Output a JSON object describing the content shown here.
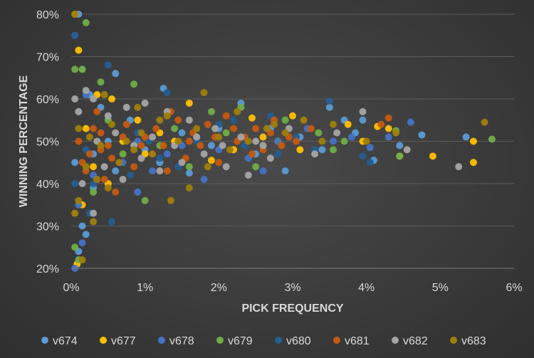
{
  "chart_data": {
    "type": "scatter",
    "title": "",
    "xlabel": "PICK FREQUENCY",
    "ylabel": "WINNING PERCENTAGE",
    "xlim": [
      0,
      6
    ],
    "ylim": [
      20,
      80
    ],
    "x_ticks": [
      "0%",
      "1%",
      "2%",
      "3%",
      "4%",
      "5%",
      "6%"
    ],
    "y_ticks": [
      "20%",
      "30%",
      "40%",
      "50%",
      "60%",
      "70%",
      "80%"
    ],
    "grid": "horizontal",
    "legend_position": "bottom",
    "series": [
      {
        "name": "v674",
        "color": "#5b9bd5",
        "points": [
          [
            0.1,
            80
          ],
          [
            0.15,
            67
          ],
          [
            0.25,
            61
          ],
          [
            0.6,
            66
          ],
          [
            1.25,
            62.5
          ],
          [
            0.4,
            58
          ],
          [
            0.8,
            55
          ],
          [
            1.5,
            52
          ],
          [
            1.9,
            49
          ],
          [
            2.3,
            59
          ],
          [
            2.7,
            53
          ],
          [
            3.1,
            51
          ],
          [
            3.5,
            58
          ],
          [
            3.7,
            55
          ],
          [
            3.85,
            52
          ],
          [
            3.95,
            55
          ],
          [
            4.45,
            49
          ],
          [
            4.75,
            51.5
          ],
          [
            5.35,
            51
          ],
          [
            0.05,
            45
          ],
          [
            0.3,
            47
          ],
          [
            0.6,
            43
          ],
          [
            1.2,
            45
          ],
          [
            2.5,
            47
          ],
          [
            2.9,
            43
          ],
          [
            3.4,
            48
          ],
          [
            4.1,
            45.5
          ],
          [
            0.15,
            30
          ],
          [
            0.2,
            28
          ],
          [
            0.3,
            39
          ],
          [
            1.6,
            42.5
          ],
          [
            0.1,
            24
          ],
          [
            0.5,
            50
          ],
          [
            1.0,
            48
          ],
          [
            2.0,
            53
          ]
        ]
      },
      {
        "name": "v677",
        "color": "#ffc000",
        "points": [
          [
            0.05,
            80
          ],
          [
            0.1,
            71.5
          ],
          [
            0.35,
            61
          ],
          [
            0.55,
            60
          ],
          [
            1.6,
            59
          ],
          [
            2.45,
            55.5
          ],
          [
            3.0,
            56
          ],
          [
            3.1,
            48
          ],
          [
            3.75,
            54
          ],
          [
            3.95,
            50
          ],
          [
            4.15,
            53.5
          ],
          [
            4.3,
            53
          ],
          [
            4.45,
            46.5
          ],
          [
            4.9,
            46.5
          ],
          [
            5.45,
            50
          ],
          [
            5.45,
            45
          ],
          [
            0.2,
            53
          ],
          [
            0.7,
            50
          ],
          [
            1.0,
            47
          ],
          [
            1.4,
            50
          ],
          [
            1.9,
            45.5
          ],
          [
            2.2,
            48
          ],
          [
            2.6,
            51
          ],
          [
            0.08,
            21
          ],
          [
            0.15,
            35
          ],
          [
            0.3,
            44
          ],
          [
            0.5,
            40
          ],
          [
            0.9,
            55
          ],
          [
            1.2,
            52
          ],
          [
            2.8,
            50
          ]
        ]
      },
      {
        "name": "v678",
        "color": "#4472c4",
        "points": [
          [
            0.05,
            75
          ],
          [
            0.2,
            61
          ],
          [
            0.5,
            55
          ],
          [
            0.9,
            50
          ],
          [
            1.3,
            47
          ],
          [
            1.7,
            51
          ],
          [
            2.0,
            48
          ],
          [
            2.4,
            46
          ],
          [
            2.8,
            50
          ],
          [
            3.2,
            53
          ],
          [
            3.55,
            50
          ],
          [
            3.8,
            51
          ],
          [
            4.05,
            48.5
          ],
          [
            4.3,
            51
          ],
          [
            4.6,
            54.5
          ],
          [
            0.1,
            35
          ],
          [
            0.15,
            26
          ],
          [
            0.05,
            20
          ],
          [
            0.3,
            42
          ],
          [
            0.7,
            45
          ],
          [
            1.1,
            43
          ],
          [
            1.5,
            49
          ],
          [
            2.6,
            43
          ],
          [
            0.9,
            38
          ],
          [
            1.8,
            41
          ]
        ]
      },
      {
        "name": "v679",
        "color": "#70ad47",
        "points": [
          [
            0.2,
            78
          ],
          [
            0.15,
            67
          ],
          [
            0.05,
            67
          ],
          [
            0.85,
            63.5
          ],
          [
            0.4,
            64
          ],
          [
            1.9,
            57
          ],
          [
            2.3,
            58
          ],
          [
            2.9,
            55
          ],
          [
            3.35,
            52
          ],
          [
            3.7,
            50
          ],
          [
            4.4,
            52.5
          ],
          [
            4.45,
            46.5
          ],
          [
            5.7,
            50.5
          ],
          [
            2.5,
            44
          ],
          [
            3.55,
            48
          ],
          [
            0.3,
            38
          ],
          [
            0.5,
            55
          ],
          [
            1.0,
            36
          ],
          [
            1.2,
            49
          ],
          [
            1.6,
            44
          ],
          [
            2.1,
            52
          ],
          [
            0.05,
            25
          ],
          [
            0.1,
            22
          ],
          [
            0.7,
            47
          ],
          [
            1.4,
            53
          ]
        ]
      },
      {
        "name": "v680",
        "color": "#255e91",
        "points": [
          [
            0.05,
            75
          ],
          [
            0.5,
            68
          ],
          [
            1.3,
            61.5
          ],
          [
            2.2,
            55
          ],
          [
            2.7,
            56
          ],
          [
            3.5,
            59.5
          ],
          [
            3.05,
            51
          ],
          [
            3.3,
            48
          ],
          [
            3.95,
            46.5
          ],
          [
            4.05,
            45
          ],
          [
            0.55,
            31
          ],
          [
            0.3,
            40
          ],
          [
            0.8,
            42
          ],
          [
            1.2,
            46
          ],
          [
            1.7,
            50
          ],
          [
            2.0,
            54
          ],
          [
            2.35,
            49
          ],
          [
            0.1,
            57
          ],
          [
            0.2,
            48
          ],
          [
            0.9,
            52
          ],
          [
            1.45,
            44
          ],
          [
            2.8,
            47
          ],
          [
            0.05,
            40
          ],
          [
            0.25,
            33
          ],
          [
            1.05,
            50
          ]
        ]
      },
      {
        "name": "v681",
        "color": "#c55a11",
        "points": [
          [
            0.3,
            53
          ],
          [
            0.4,
            48
          ],
          [
            0.55,
            46
          ],
          [
            0.7,
            51
          ],
          [
            0.95,
            49
          ],
          [
            1.15,
            53
          ],
          [
            1.35,
            57
          ],
          [
            1.6,
            50
          ],
          [
            1.85,
            54
          ],
          [
            2.1,
            56
          ],
          [
            2.35,
            51
          ],
          [
            2.6,
            48
          ],
          [
            2.75,
            55
          ],
          [
            3.05,
            50
          ],
          [
            3.25,
            53
          ],
          [
            4.2,
            54
          ],
          [
            4.3,
            55.5
          ],
          [
            0.2,
            43
          ],
          [
            0.45,
            41
          ],
          [
            0.6,
            38
          ],
          [
            0.85,
            44
          ],
          [
            1.1,
            47
          ],
          [
            1.3,
            43
          ],
          [
            1.55,
            46
          ],
          [
            1.75,
            49
          ],
          [
            2.0,
            45
          ],
          [
            2.25,
            50
          ],
          [
            2.5,
            53
          ],
          [
            2.85,
            49
          ],
          [
            0.05,
            33
          ],
          [
            0.15,
            45
          ],
          [
            0.35,
            57
          ],
          [
            0.5,
            49
          ],
          [
            0.75,
            54
          ],
          [
            1.0,
            51
          ],
          [
            1.25,
            49
          ],
          [
            1.45,
            55
          ],
          [
            1.65,
            52
          ],
          [
            1.95,
            51
          ],
          [
            2.2,
            53
          ],
          [
            2.45,
            47
          ],
          [
            2.7,
            52
          ],
          [
            2.95,
            51
          ],
          [
            3.15,
            55
          ],
          [
            0.1,
            50
          ],
          [
            0.25,
            47
          ],
          [
            0.4,
            52
          ]
        ]
      },
      {
        "name": "v682",
        "color": "#a5a5a5",
        "points": [
          [
            0.2,
            62
          ],
          [
            0.3,
            60
          ],
          [
            0.5,
            56
          ],
          [
            0.75,
            58
          ],
          [
            1.0,
            59
          ],
          [
            1.3,
            57
          ],
          [
            1.6,
            55
          ],
          [
            1.95,
            53
          ],
          [
            2.3,
            51
          ],
          [
            2.6,
            49
          ],
          [
            2.95,
            53
          ],
          [
            3.3,
            47
          ],
          [
            3.95,
            57
          ],
          [
            4.55,
            48
          ],
          [
            5.25,
            44
          ],
          [
            0.15,
            40
          ],
          [
            0.3,
            33
          ],
          [
            0.45,
            44
          ],
          [
            0.7,
            41
          ],
          [
            0.95,
            46
          ],
          [
            1.2,
            43
          ],
          [
            1.5,
            45
          ],
          [
            1.8,
            47
          ],
          [
            2.1,
            44
          ],
          [
            2.4,
            42
          ],
          [
            2.7,
            46
          ],
          [
            0.1,
            57
          ],
          [
            0.35,
            50
          ],
          [
            0.6,
            52
          ],
          [
            0.85,
            49
          ],
          [
            1.1,
            51
          ],
          [
            1.4,
            49
          ],
          [
            1.7,
            51
          ],
          [
            2.05,
            49
          ],
          [
            2.5,
            50
          ],
          [
            3.6,
            52
          ],
          [
            0.05,
            60
          ]
        ]
      },
      {
        "name": "v683",
        "color": "#9e7e0c",
        "points": [
          [
            0.05,
            80
          ],
          [
            0.45,
            61
          ],
          [
            0.9,
            58
          ],
          [
            1.3,
            56
          ],
          [
            1.8,
            61.5
          ],
          [
            2.25,
            57
          ],
          [
            2.75,
            54
          ],
          [
            3.15,
            55
          ],
          [
            3.55,
            54
          ],
          [
            4.0,
            50
          ],
          [
            4.4,
            52
          ],
          [
            5.6,
            54.5
          ],
          [
            0.05,
            33
          ],
          [
            0.1,
            36
          ],
          [
            0.2,
            44
          ],
          [
            0.35,
            41
          ],
          [
            0.5,
            39
          ],
          [
            0.65,
            45
          ],
          [
            0.85,
            48
          ],
          [
            1.1,
            47
          ],
          [
            1.35,
            36
          ],
          [
            1.6,
            39
          ],
          [
            1.85,
            44
          ],
          [
            2.15,
            48
          ],
          [
            2.4,
            50
          ],
          [
            2.65,
            53
          ],
          [
            2.9,
            52
          ],
          [
            3.4,
            50
          ],
          [
            0.1,
            53
          ],
          [
            0.25,
            51
          ],
          [
            0.4,
            49
          ],
          [
            0.55,
            54
          ],
          [
            0.75,
            50
          ],
          [
            0.95,
            52
          ],
          [
            1.2,
            55
          ],
          [
            1.45,
            50
          ],
          [
            1.7,
            53
          ],
          [
            2.0,
            51
          ],
          [
            0.15,
            22
          ],
          [
            0.3,
            31
          ]
        ]
      }
    ]
  }
}
